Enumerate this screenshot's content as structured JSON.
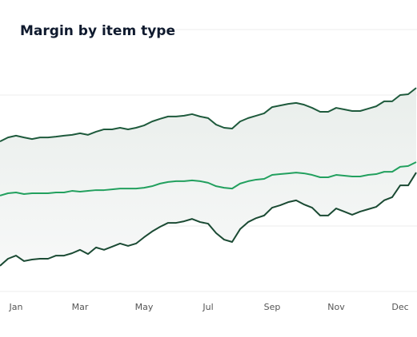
{
  "chart_data": {
    "type": "line",
    "title": "Margin by item type",
    "categories": [
      null,
      null,
      "Jan",
      null,
      null,
      null,
      null,
      null,
      null,
      null,
      "Mar",
      null,
      null,
      null,
      null,
      null,
      null,
      null,
      "May",
      null,
      null,
      null,
      null,
      null,
      null,
      null,
      "Jul",
      null,
      null,
      null,
      null,
      null,
      null,
      null,
      "Sep",
      null,
      null,
      null,
      null,
      null,
      null,
      null,
      "Nov",
      null,
      null,
      null,
      null,
      null,
      null,
      null,
      "Dec",
      null,
      null
    ],
    "ylim": [
      0,
      100
    ],
    "yticks": [
      0,
      25,
      50,
      75,
      100
    ],
    "grid": true,
    "series": [
      {
        "color": "#1e5a3c",
        "values": [
          57.3,
          58.8,
          59.5,
          58.8,
          58.2,
          58.8,
          58.8,
          59.1,
          59.5,
          59.8,
          60.4,
          59.8,
          61.0,
          61.9,
          61.9,
          62.5,
          61.9,
          62.5,
          63.4,
          64.9,
          65.9,
          66.8,
          66.8,
          67.1,
          67.7,
          66.8,
          66.2,
          63.7,
          62.5,
          62.2,
          64.9,
          66.2,
          67.1,
          68.0,
          70.4,
          71.0,
          71.6,
          72.0,
          71.3,
          70.1,
          68.6,
          68.6,
          70.1,
          69.5,
          68.9,
          68.9,
          69.8,
          70.7,
          72.6,
          72.6,
          75.0,
          75.3,
          77.7
        ]
      },
      {
        "color": "#22a05e",
        "values": [
          36.6,
          37.5,
          37.8,
          37.2,
          37.5,
          37.5,
          37.5,
          37.8,
          37.8,
          38.4,
          38.1,
          38.4,
          38.7,
          38.7,
          39.0,
          39.3,
          39.3,
          39.3,
          39.6,
          40.2,
          41.2,
          41.8,
          42.1,
          42.1,
          42.4,
          42.1,
          41.5,
          40.2,
          39.6,
          39.3,
          41.2,
          42.1,
          42.7,
          43.0,
          44.5,
          44.8,
          45.1,
          45.4,
          45.1,
          44.5,
          43.6,
          43.6,
          44.5,
          44.2,
          43.9,
          43.9,
          44.5,
          44.8,
          45.7,
          45.7,
          47.6,
          47.9,
          49.4
        ]
      },
      {
        "color": "#1a4a33",
        "values": [
          9.8,
          12.5,
          13.7,
          11.6,
          12.2,
          12.5,
          12.5,
          13.7,
          13.7,
          14.6,
          15.9,
          14.3,
          16.8,
          15.9,
          17.1,
          18.3,
          17.4,
          18.3,
          20.7,
          22.9,
          24.7,
          26.2,
          26.2,
          26.8,
          27.7,
          26.5,
          25.9,
          22.3,
          19.8,
          18.9,
          23.8,
          26.5,
          28.0,
          29.0,
          32.0,
          32.9,
          34.1,
          34.8,
          33.2,
          32.0,
          29.0,
          29.0,
          31.7,
          30.5,
          29.3,
          30.5,
          31.4,
          32.3,
          34.8,
          36.0,
          40.5,
          40.5,
          45.4
        ]
      }
    ]
  }
}
